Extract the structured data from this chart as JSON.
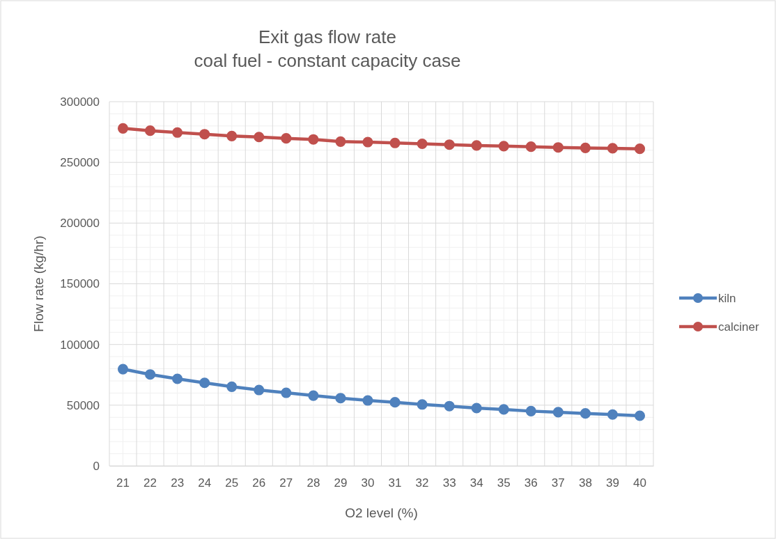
{
  "chart_data": {
    "type": "line",
    "title": "Exit gas flow rate\ncoal fuel - constant capacity case",
    "xlabel": "O2 level (%)",
    "ylabel": "Flow rate (kg/hr)",
    "categories": [
      "21",
      "22",
      "23",
      "24",
      "25",
      "26",
      "27",
      "28",
      "29",
      "30",
      "31",
      "32",
      "33",
      "34",
      "35",
      "36",
      "37",
      "38",
      "39",
      "40"
    ],
    "series": [
      {
        "name": "kiln",
        "color": "#4f81bd",
        "values": [
          79700,
          75300,
          71700,
          68400,
          65200,
          62500,
          60200,
          57900,
          55800,
          53900,
          52400,
          50600,
          49200,
          47600,
          46500,
          45100,
          44200,
          43200,
          42300,
          41300
        ]
      },
      {
        "name": "calciner",
        "color": "#c0504d",
        "values": [
          278000,
          276100,
          274600,
          273200,
          271700,
          270900,
          269800,
          268900,
          267100,
          266700,
          266000,
          265300,
          264600,
          263900,
          263400,
          262900,
          262300,
          261900,
          261600,
          261200
        ]
      }
    ],
    "ylim": [
      0,
      300000
    ],
    "yticks": [
      0,
      50000,
      100000,
      150000,
      200000,
      250000,
      300000
    ],
    "grid": true,
    "legend": "right",
    "marker": "circle",
    "line_style": "solid"
  }
}
